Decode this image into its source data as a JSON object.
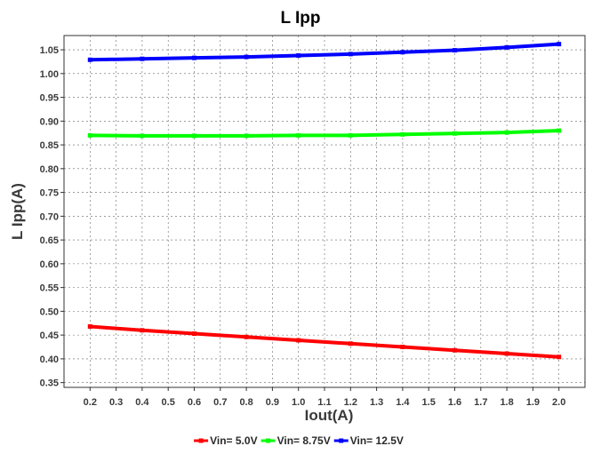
{
  "chart_data": {
    "type": "line",
    "title": "L Ipp",
    "xlabel": "Iout(A)",
    "ylabel": "L Ipp(A)",
    "ylim": [
      0.34,
      1.08
    ],
    "xlim": [
      0.1,
      2.1
    ],
    "x_ticks": [
      "0.2",
      "0.3",
      "0.4",
      "0.5",
      "0.6",
      "0.7",
      "0.8",
      "0.9",
      "1.0",
      "1.1",
      "1.2",
      "1.3",
      "1.4",
      "1.5",
      "1.6",
      "1.7",
      "1.8",
      "1.9",
      "2.0"
    ],
    "y_ticks": [
      "0.35",
      "0.40",
      "0.45",
      "0.50",
      "0.55",
      "0.60",
      "0.65",
      "0.70",
      "0.75",
      "0.80",
      "0.85",
      "0.90",
      "0.95",
      "1.00",
      "1.05"
    ],
    "grid": true,
    "legend_position": "bottom",
    "x": [
      0.2,
      0.4,
      0.6,
      0.8,
      1.0,
      1.2,
      1.4,
      1.6,
      1.8,
      2.0
    ],
    "series": [
      {
        "name": "Vin= 5.0V",
        "color": "#ff0000",
        "values": [
          0.468,
          0.46,
          0.453,
          0.446,
          0.439,
          0.432,
          0.425,
          0.418,
          0.411,
          0.404
        ]
      },
      {
        "name": "Vin= 8.75V",
        "color": "#00ff00",
        "values": [
          0.87,
          0.869,
          0.869,
          0.869,
          0.87,
          0.87,
          0.872,
          0.874,
          0.876,
          0.88
        ]
      },
      {
        "name": "Vin= 12.5V",
        "color": "#0000ff",
        "values": [
          1.029,
          1.031,
          1.033,
          1.035,
          1.038,
          1.041,
          1.045,
          1.049,
          1.055,
          1.062
        ]
      }
    ]
  }
}
